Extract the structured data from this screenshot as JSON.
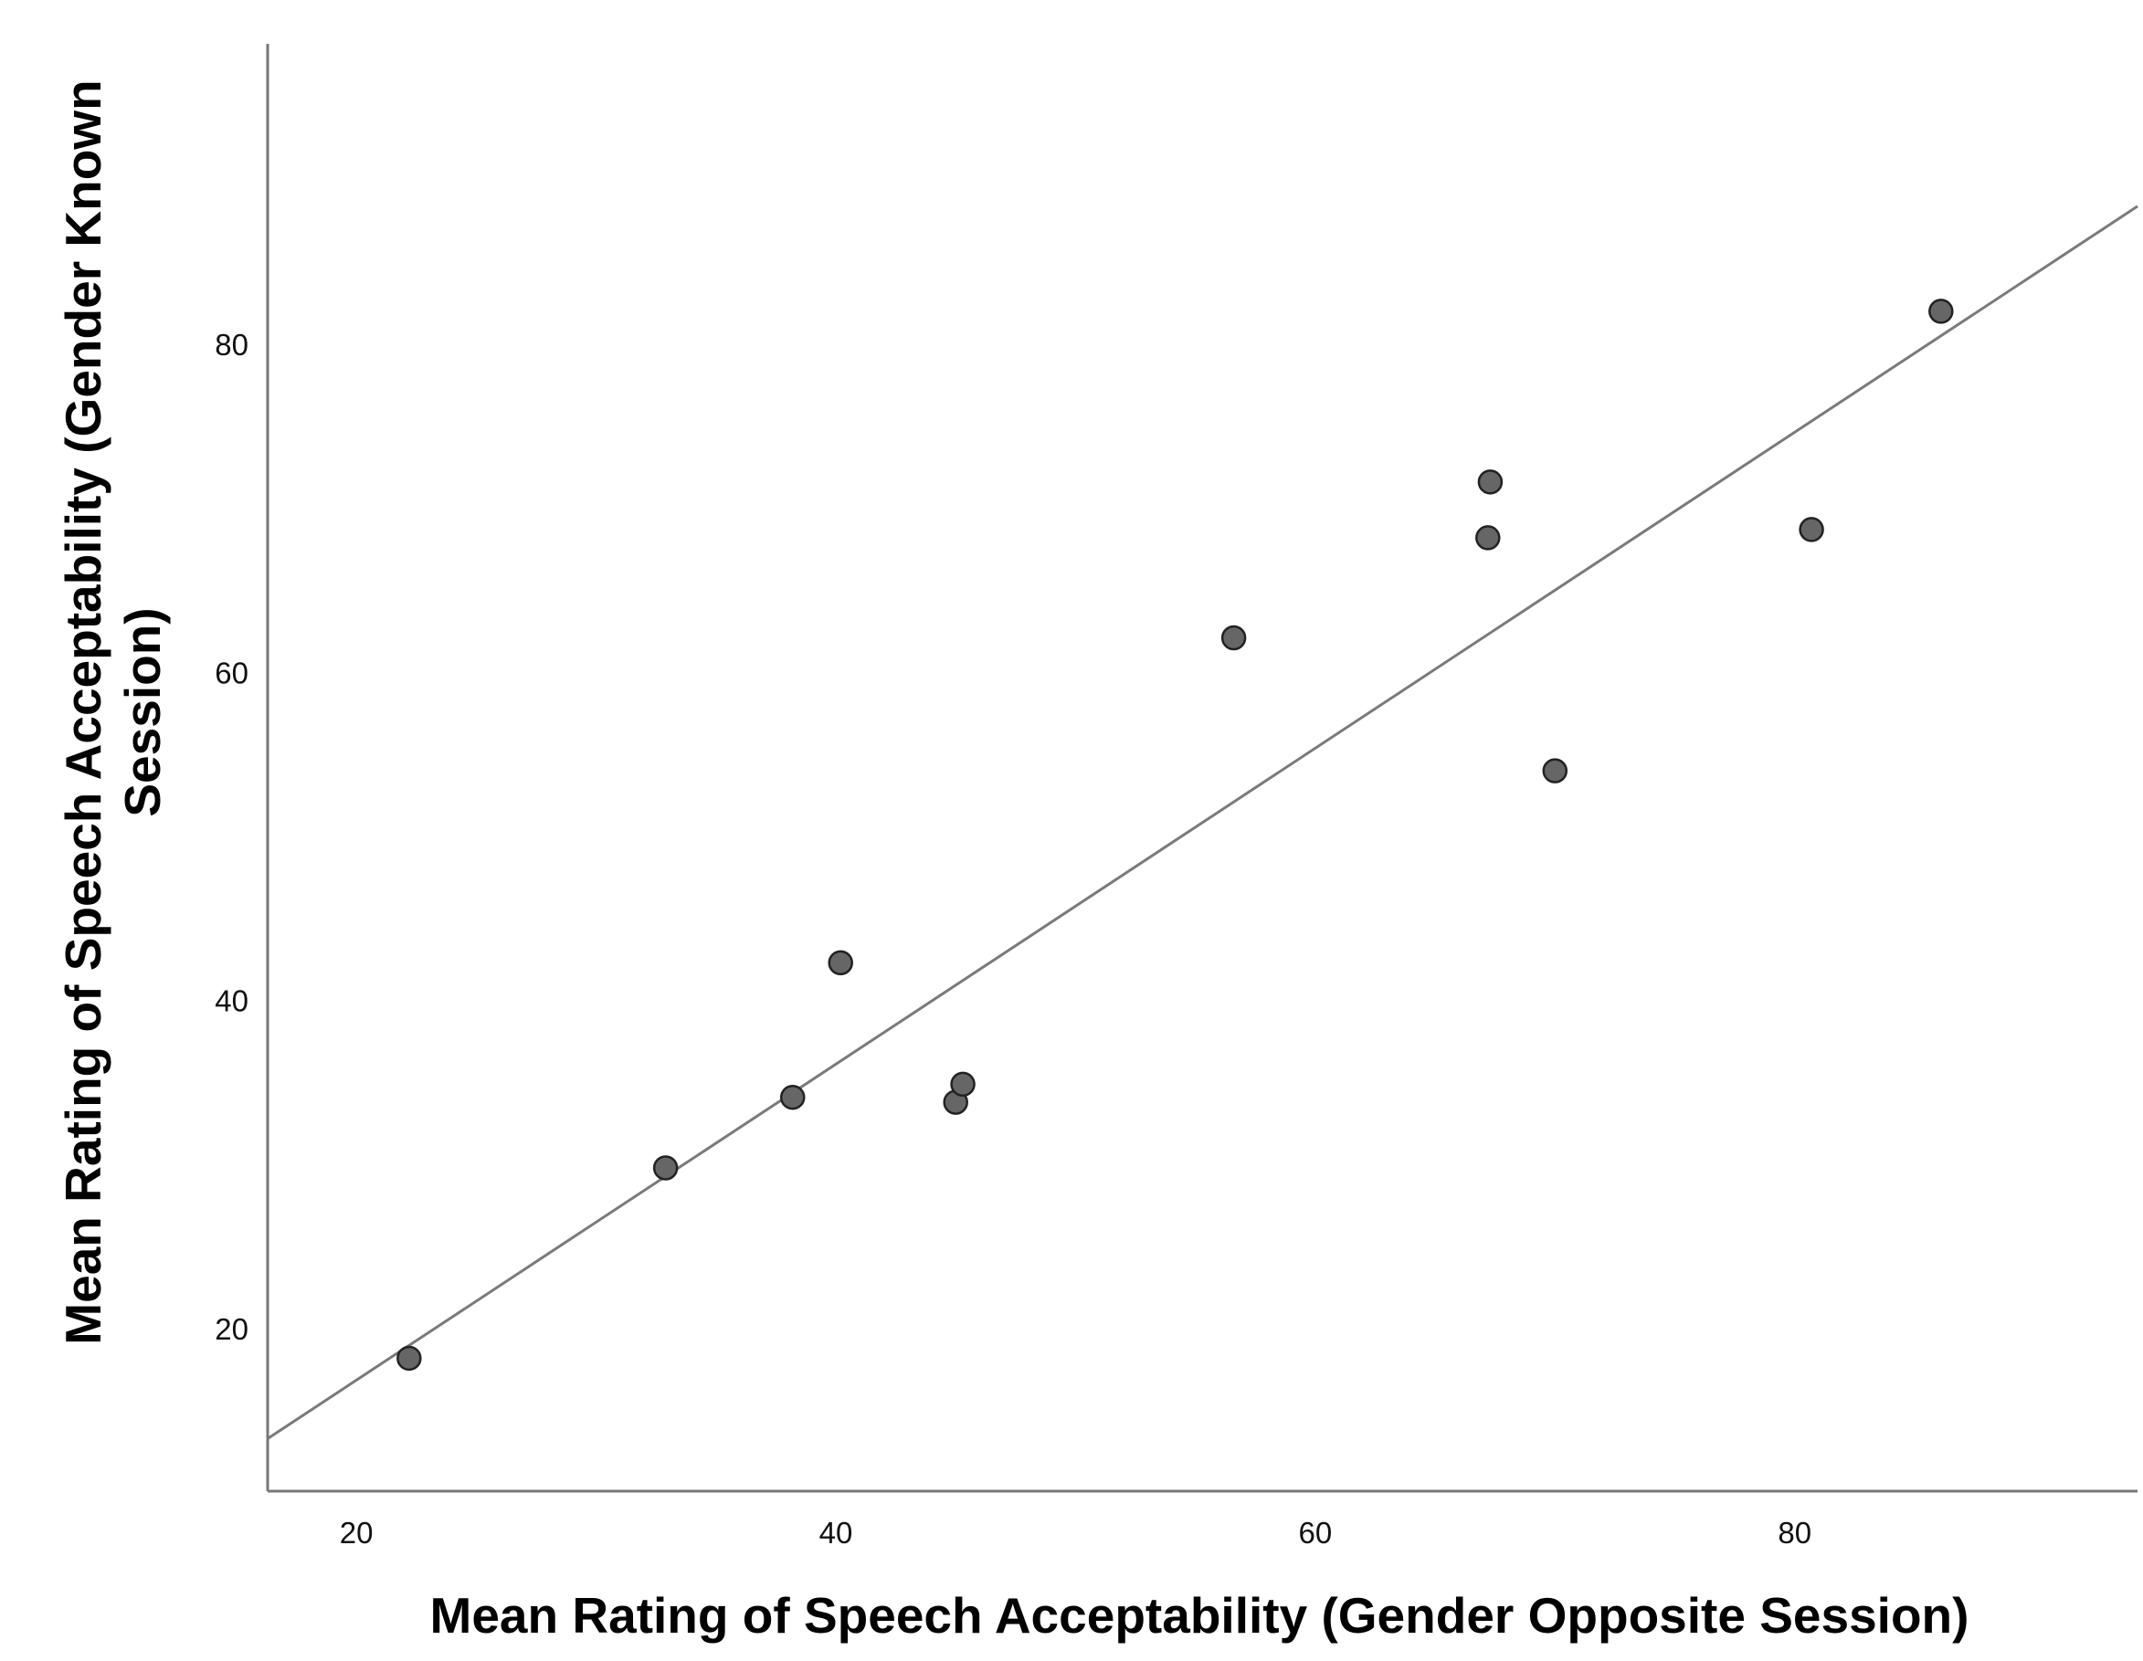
{
  "chart_data": {
    "type": "scatter",
    "title": "",
    "xlabel": "Mean Rating of Speech Acceptability (Gender Opposite Session)",
    "ylabel_lines": [
      "Mean Rating of Speech Acceptability (Gender Known",
      "Session)"
    ],
    "xlim": [
      16.3,
      94.3
    ],
    "ylim": [
      10.1,
      98.3
    ],
    "xticks": [
      20,
      40,
      60,
      80
    ],
    "yticks": [
      20,
      40,
      60,
      80
    ],
    "grid": false,
    "legend": "none",
    "colors": {
      "marker": "#666666",
      "marker_edge": "#222222",
      "fit_line": "#7a7a7a",
      "axis": "#777777"
    },
    "points": [
      {
        "x": 22.2,
        "y": 18.2
      },
      {
        "x": 32.9,
        "y": 29.8
      },
      {
        "x": 38.2,
        "y": 34.1
      },
      {
        "x": 40.2,
        "y": 42.3
      },
      {
        "x": 45.0,
        "y": 33.8
      },
      {
        "x": 45.3,
        "y": 34.9
      },
      {
        "x": 56.6,
        "y": 62.1
      },
      {
        "x": 67.2,
        "y": 68.2
      },
      {
        "x": 67.3,
        "y": 71.6
      },
      {
        "x": 70.0,
        "y": 54.0
      },
      {
        "x": 80.7,
        "y": 68.7
      },
      {
        "x": 86.1,
        "y": 82.0
      }
    ],
    "fit_line": {
      "x": [
        16.3,
        94.3
      ],
      "y": [
        13.3,
        88.4
      ]
    }
  }
}
